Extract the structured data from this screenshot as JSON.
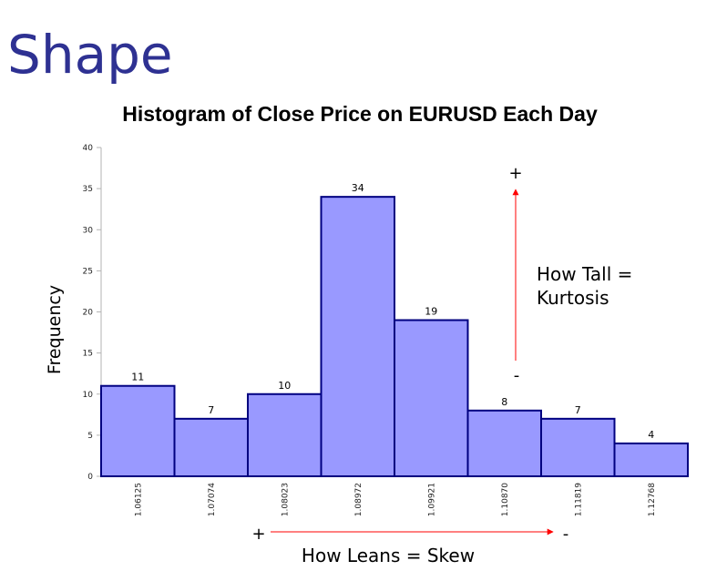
{
  "slide": {
    "title": "Shape"
  },
  "chart_data": {
    "type": "bar",
    "title": "Histogram of Close Price on EURUSD Each Day",
    "xlabel": "",
    "ylabel": "Frequency",
    "categories": [
      "1.06125",
      "1.07074",
      "1.08023",
      "1.08972",
      "1.09921",
      "1.10870",
      "1.11819",
      "1.12768"
    ],
    "values": [
      11,
      7,
      10,
      34,
      19,
      8,
      7,
      4
    ],
    "ylim": [
      0,
      40
    ],
    "yticks": [
      "0",
      "5",
      "10",
      "15",
      "20",
      "25",
      "30",
      "35",
      "40"
    ],
    "grid": false,
    "bar_fill": "#9999ff",
    "bar_stroke": "#000080"
  },
  "annotations": {
    "kurtosis_line1": "How Tall =",
    "kurtosis_line2": "Kurtosis",
    "kurtosis_plus": "+",
    "kurtosis_minus": "-",
    "skew_label": "How Leans = Skew",
    "skew_plus": "+",
    "skew_minus": "-",
    "arrow_color": "#ff0000"
  }
}
